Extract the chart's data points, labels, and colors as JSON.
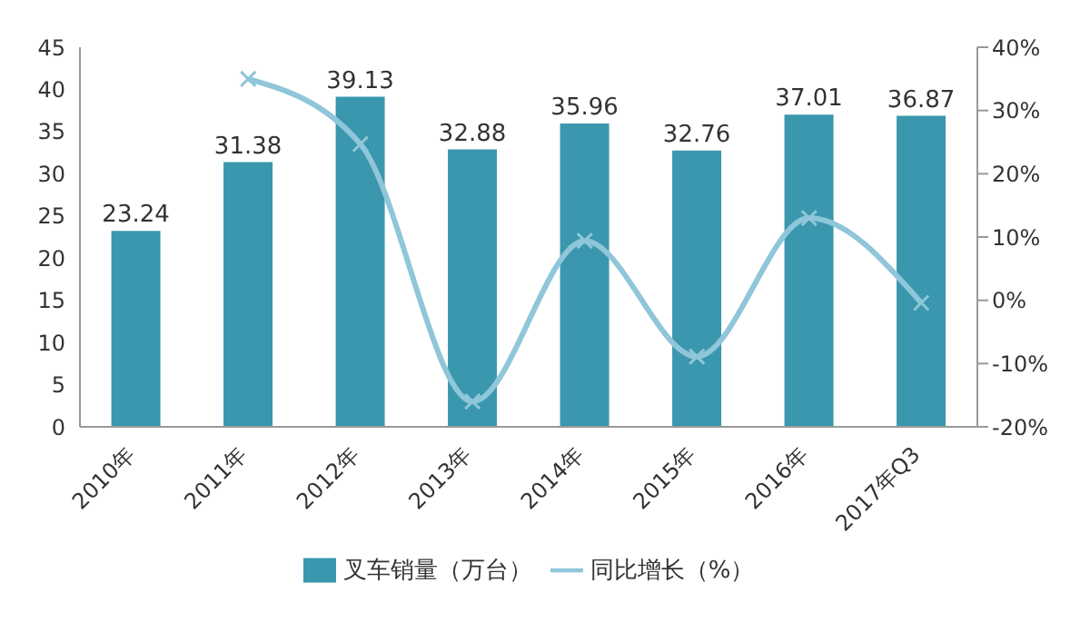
{
  "chart_data": {
    "type": "bar",
    "categories": [
      "2010年",
      "2011年",
      "2012年",
      "2013年",
      "2014年",
      "2015年",
      "2016年",
      "2017年Q3"
    ],
    "series": [
      {
        "name": "叉车销量（万台）",
        "color": "#3a97ad",
        "values": [
          23.24,
          31.38,
          39.13,
          32.88,
          35.96,
          32.76,
          37.01,
          36.87
        ],
        "value_labels": [
          "23.24",
          "31.38",
          "39.13",
          "32.88",
          "35.96",
          "32.76",
          "37.01",
          "36.87"
        ]
      },
      {
        "name": "同比增长（%）",
        "type": "line",
        "axis": "y2",
        "color": "#8fc6d9",
        "marker": "cross",
        "values": [
          null,
          35,
          24.7,
          -16,
          9.4,
          -8.9,
          13,
          -0.4
        ]
      }
    ],
    "ylim": [
      0,
      45
    ],
    "yticks": [
      0,
      5,
      10,
      15,
      20,
      25,
      30,
      35,
      40,
      45
    ],
    "y2lim": [
      -20,
      40
    ],
    "y2ticks": [
      {
        "value": -20,
        "label": "-20%"
      },
      {
        "value": -10,
        "label": "-10%"
      },
      {
        "value": 0,
        "label": "0%"
      },
      {
        "value": 10,
        "label": "10%"
      },
      {
        "value": 20,
        "label": "20%"
      },
      {
        "value": 30,
        "label": "30%"
      },
      {
        "value": 40,
        "label": "40%"
      }
    ],
    "grid": false,
    "legend": "bottom"
  }
}
